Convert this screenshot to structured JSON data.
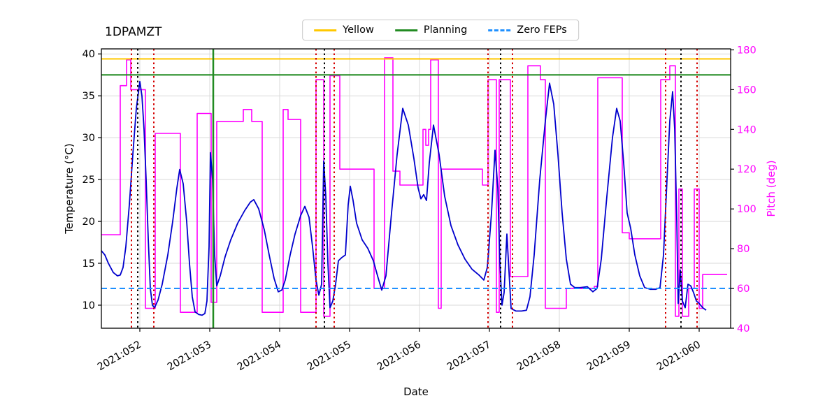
{
  "title": "1DPAMZT",
  "legend": {
    "items": [
      {
        "label": "Yellow",
        "color": "#ffc800",
        "dash": "solid"
      },
      {
        "label": "Planning",
        "color": "#228b22",
        "dash": "solid"
      },
      {
        "label": "Zero FEPs",
        "color": "#1e90ff",
        "dash": "dashed"
      }
    ]
  },
  "chart_data": {
    "type": "line",
    "title": "1DPAMZT",
    "xlabel": "Date",
    "ylabel_left": "Temperature (°C)",
    "ylabel_right": "Pitch (deg)",
    "grid": true,
    "x_range": [
      51.45,
      60.45
    ],
    "x_ticks": [
      {
        "v": 52,
        "label": "2021:052"
      },
      {
        "v": 53,
        "label": "2021:053"
      },
      {
        "v": 54,
        "label": "2021:054"
      },
      {
        "v": 55,
        "label": "2021:055"
      },
      {
        "v": 56,
        "label": "2021:056"
      },
      {
        "v": 57,
        "label": "2021:057"
      },
      {
        "v": 58,
        "label": "2021:058"
      },
      {
        "v": 59,
        "label": "2021:059"
      },
      {
        "v": 60,
        "label": "2021:060"
      }
    ],
    "y_left": {
      "min": 7.25,
      "max": 40.6,
      "ticks": [
        10,
        15,
        20,
        25,
        30,
        35,
        40
      ],
      "color": "#000000"
    },
    "y_right": {
      "min": 40,
      "max": 180.5,
      "ticks": [
        40,
        60,
        80,
        100,
        120,
        140,
        160,
        180
      ],
      "color": "#ff00ff"
    },
    "hlines": [
      {
        "name": "yellow-limit",
        "y": 39.4,
        "color": "#ffc800",
        "style": "solid",
        "width": 2
      },
      {
        "name": "planning-limit",
        "y": 37.5,
        "color": "#228b22",
        "style": "solid",
        "width": 2
      },
      {
        "name": "zero-feps-line",
        "y": 12.0,
        "color": "#1e90ff",
        "style": "dashed",
        "width": 2
      }
    ],
    "vlines": [
      {
        "name": "planning-time",
        "x": 53.05,
        "color": "#228b22",
        "style": "solid",
        "width": 2.5
      },
      {
        "name": "red-marker",
        "x": 51.88,
        "color": "#d40000",
        "style": "dotted",
        "width": 2
      },
      {
        "name": "red-marker",
        "x": 52.2,
        "color": "#d40000",
        "style": "dotted",
        "width": 2
      },
      {
        "name": "red-marker",
        "x": 54.52,
        "color": "#d40000",
        "style": "dotted",
        "width": 2
      },
      {
        "name": "red-marker",
        "x": 54.78,
        "color": "#d40000",
        "style": "dotted",
        "width": 2
      },
      {
        "name": "red-marker",
        "x": 56.98,
        "color": "#d40000",
        "style": "dotted",
        "width": 2
      },
      {
        "name": "red-marker",
        "x": 57.33,
        "color": "#d40000",
        "style": "dotted",
        "width": 2
      },
      {
        "name": "red-marker",
        "x": 59.52,
        "color": "#d40000",
        "style": "dotted",
        "width": 2
      },
      {
        "name": "red-marker",
        "x": 59.97,
        "color": "#d40000",
        "style": "dotted",
        "width": 2
      },
      {
        "name": "black-marker",
        "x": 51.97,
        "color": "#000000",
        "style": "dotted",
        "width": 2
      },
      {
        "name": "black-marker",
        "x": 54.64,
        "color": "#000000",
        "style": "dotted",
        "width": 2
      },
      {
        "name": "black-marker",
        "x": 57.16,
        "color": "#000000",
        "style": "dotted",
        "width": 2
      },
      {
        "name": "black-marker",
        "x": 59.74,
        "color": "#000000",
        "style": "dotted",
        "width": 2
      }
    ],
    "series": [
      {
        "name": "pitch",
        "color": "#ff00ff",
        "axis": "right",
        "step": true,
        "width": 1.6,
        "points": [
          [
            51.45,
            87
          ],
          [
            51.72,
            162
          ],
          [
            51.81,
            175
          ],
          [
            51.87,
            160
          ],
          [
            52.08,
            50
          ],
          [
            52.22,
            138
          ],
          [
            52.58,
            48
          ],
          [
            52.82,
            148
          ],
          [
            53.02,
            53
          ],
          [
            53.1,
            144
          ],
          [
            53.48,
            150
          ],
          [
            53.6,
            144
          ],
          [
            53.75,
            48
          ],
          [
            54.05,
            150
          ],
          [
            54.12,
            145
          ],
          [
            54.3,
            48
          ],
          [
            54.52,
            165
          ],
          [
            54.63,
            46
          ],
          [
            54.72,
            167
          ],
          [
            54.86,
            120
          ],
          [
            55.35,
            60
          ],
          [
            55.5,
            176
          ],
          [
            55.62,
            119
          ],
          [
            55.72,
            112
          ],
          [
            56.05,
            140
          ],
          [
            56.09,
            132
          ],
          [
            56.13,
            140
          ],
          [
            56.16,
            175
          ],
          [
            56.27,
            50
          ],
          [
            56.31,
            120
          ],
          [
            56.9,
            112
          ],
          [
            56.98,
            165
          ],
          [
            57.1,
            48
          ],
          [
            57.14,
            165
          ],
          [
            57.3,
            66
          ],
          [
            57.55,
            172
          ],
          [
            57.73,
            165
          ],
          [
            57.8,
            50
          ],
          [
            58.1,
            60
          ],
          [
            58.5,
            61
          ],
          [
            58.55,
            166
          ],
          [
            58.9,
            88
          ],
          [
            59.0,
            85
          ],
          [
            59.45,
            165
          ],
          [
            59.58,
            172
          ],
          [
            59.66,
            46
          ],
          [
            59.71,
            110
          ],
          [
            59.76,
            46
          ],
          [
            59.85,
            60
          ],
          [
            59.93,
            110
          ],
          [
            60.0,
            50
          ],
          [
            60.05,
            67
          ],
          [
            60.4,
            67
          ]
        ]
      },
      {
        "name": "temperature",
        "color": "#0000cd",
        "axis": "left",
        "step": false,
        "width": 1.8,
        "points": [
          [
            51.45,
            16.5
          ],
          [
            51.5,
            16.0
          ],
          [
            51.55,
            15.0
          ],
          [
            51.62,
            13.9
          ],
          [
            51.68,
            13.5
          ],
          [
            51.72,
            13.6
          ],
          [
            51.76,
            14.5
          ],
          [
            51.8,
            17.0
          ],
          [
            51.85,
            22.0
          ],
          [
            51.9,
            28.0
          ],
          [
            51.95,
            33.5
          ],
          [
            52.0,
            36.7
          ],
          [
            52.03,
            35.0
          ],
          [
            52.06,
            31.0
          ],
          [
            52.09,
            25.0
          ],
          [
            52.12,
            18.0
          ],
          [
            52.15,
            12.0
          ],
          [
            52.18,
            10.0
          ],
          [
            52.21,
            9.7
          ],
          [
            52.26,
            10.6
          ],
          [
            52.32,
            12.5
          ],
          [
            52.4,
            16.0
          ],
          [
            52.47,
            20.0
          ],
          [
            52.53,
            24.0
          ],
          [
            52.57,
            26.2
          ],
          [
            52.62,
            24.5
          ],
          [
            52.67,
            20.0
          ],
          [
            52.71,
            15.0
          ],
          [
            52.75,
            11.0
          ],
          [
            52.79,
            9.2
          ],
          [
            52.84,
            8.9
          ],
          [
            52.89,
            8.8
          ],
          [
            52.93,
            9.0
          ],
          [
            52.96,
            10.5
          ],
          [
            52.99,
            17.0
          ],
          [
            53.01,
            28.2
          ],
          [
            53.04,
            25.0
          ],
          [
            53.07,
            16.0
          ],
          [
            53.1,
            12.3
          ],
          [
            53.15,
            13.5
          ],
          [
            53.22,
            15.8
          ],
          [
            53.3,
            17.8
          ],
          [
            53.4,
            19.8
          ],
          [
            53.5,
            21.3
          ],
          [
            53.58,
            22.3
          ],
          [
            53.63,
            22.6
          ],
          [
            53.7,
            21.5
          ],
          [
            53.78,
            19.0
          ],
          [
            53.85,
            16.0
          ],
          [
            53.92,
            13.2
          ],
          [
            53.98,
            11.6
          ],
          [
            54.03,
            11.8
          ],
          [
            54.08,
            13.0
          ],
          [
            54.15,
            16.0
          ],
          [
            54.22,
            18.5
          ],
          [
            54.3,
            20.7
          ],
          [
            54.36,
            21.8
          ],
          [
            54.42,
            20.5
          ],
          [
            54.47,
            17.0
          ],
          [
            54.52,
            13.0
          ],
          [
            54.56,
            11.2
          ],
          [
            54.6,
            12.5
          ],
          [
            54.63,
            27.2
          ],
          [
            54.66,
            23.0
          ],
          [
            54.69,
            15.0
          ],
          [
            54.72,
            9.7
          ],
          [
            54.76,
            10.5
          ],
          [
            54.8,
            12.5
          ],
          [
            54.84,
            15.3
          ],
          [
            54.89,
            15.7
          ],
          [
            54.94,
            16.0
          ],
          [
            54.98,
            22.0
          ],
          [
            55.01,
            24.2
          ],
          [
            55.05,
            22.5
          ],
          [
            55.1,
            19.8
          ],
          [
            55.18,
            17.8
          ],
          [
            55.26,
            16.8
          ],
          [
            55.34,
            15.3
          ],
          [
            55.4,
            13.5
          ],
          [
            55.46,
            11.8
          ],
          [
            55.52,
            13.5
          ],
          [
            55.6,
            21.0
          ],
          [
            55.68,
            28.0
          ],
          [
            55.76,
            33.5
          ],
          [
            55.84,
            31.5
          ],
          [
            55.92,
            27.5
          ],
          [
            55.98,
            24.0
          ],
          [
            56.02,
            22.7
          ],
          [
            56.06,
            23.2
          ],
          [
            56.1,
            22.5
          ],
          [
            56.14,
            27.0
          ],
          [
            56.2,
            31.5
          ],
          [
            56.28,
            28.0
          ],
          [
            56.36,
            23.0
          ],
          [
            56.45,
            19.5
          ],
          [
            56.55,
            17.2
          ],
          [
            56.65,
            15.5
          ],
          [
            56.75,
            14.3
          ],
          [
            56.85,
            13.6
          ],
          [
            56.92,
            13.0
          ],
          [
            56.97,
            14.5
          ],
          [
            57.03,
            21.0
          ],
          [
            57.08,
            28.5
          ],
          [
            57.12,
            24.0
          ],
          [
            57.15,
            15.0
          ],
          [
            57.18,
            10.0
          ],
          [
            57.21,
            11.5
          ],
          [
            57.25,
            18.5
          ],
          [
            57.28,
            14.0
          ],
          [
            57.31,
            9.6
          ],
          [
            57.38,
            9.3
          ],
          [
            57.46,
            9.3
          ],
          [
            57.53,
            9.4
          ],
          [
            57.58,
            11.0
          ],
          [
            57.64,
            16.0
          ],
          [
            57.72,
            25.0
          ],
          [
            57.8,
            32.0
          ],
          [
            57.86,
            36.5
          ],
          [
            57.92,
            34.0
          ],
          [
            57.98,
            28.0
          ],
          [
            58.04,
            21.0
          ],
          [
            58.1,
            15.5
          ],
          [
            58.16,
            12.5
          ],
          [
            58.22,
            12.1
          ],
          [
            58.3,
            12.1
          ],
          [
            58.4,
            12.2
          ],
          [
            58.48,
            11.6
          ],
          [
            58.54,
            12.0
          ],
          [
            58.6,
            15.5
          ],
          [
            58.68,
            23.0
          ],
          [
            58.76,
            30.0
          ],
          [
            58.82,
            33.5
          ],
          [
            58.87,
            32.0
          ],
          [
            58.92,
            27.0
          ],
          [
            58.97,
            21.0
          ],
          [
            59.02,
            19.2
          ],
          [
            59.08,
            16.0
          ],
          [
            59.15,
            13.5
          ],
          [
            59.22,
            12.1
          ],
          [
            59.3,
            11.9
          ],
          [
            59.38,
            11.9
          ],
          [
            59.44,
            12.1
          ],
          [
            59.49,
            16.0
          ],
          [
            59.54,
            25.0
          ],
          [
            59.58,
            32.0
          ],
          [
            59.62,
            35.5
          ],
          [
            59.65,
            31.0
          ],
          [
            59.68,
            20.0
          ],
          [
            59.7,
            10.2
          ],
          [
            59.73,
            14.2
          ],
          [
            59.76,
            10.5
          ],
          [
            59.8,
            9.7
          ],
          [
            59.84,
            12.5
          ],
          [
            59.88,
            12.3
          ],
          [
            59.92,
            11.5
          ],
          [
            59.96,
            10.5
          ],
          [
            60.0,
            10.2
          ],
          [
            60.05,
            9.7
          ],
          [
            60.1,
            9.4
          ]
        ]
      }
    ]
  }
}
